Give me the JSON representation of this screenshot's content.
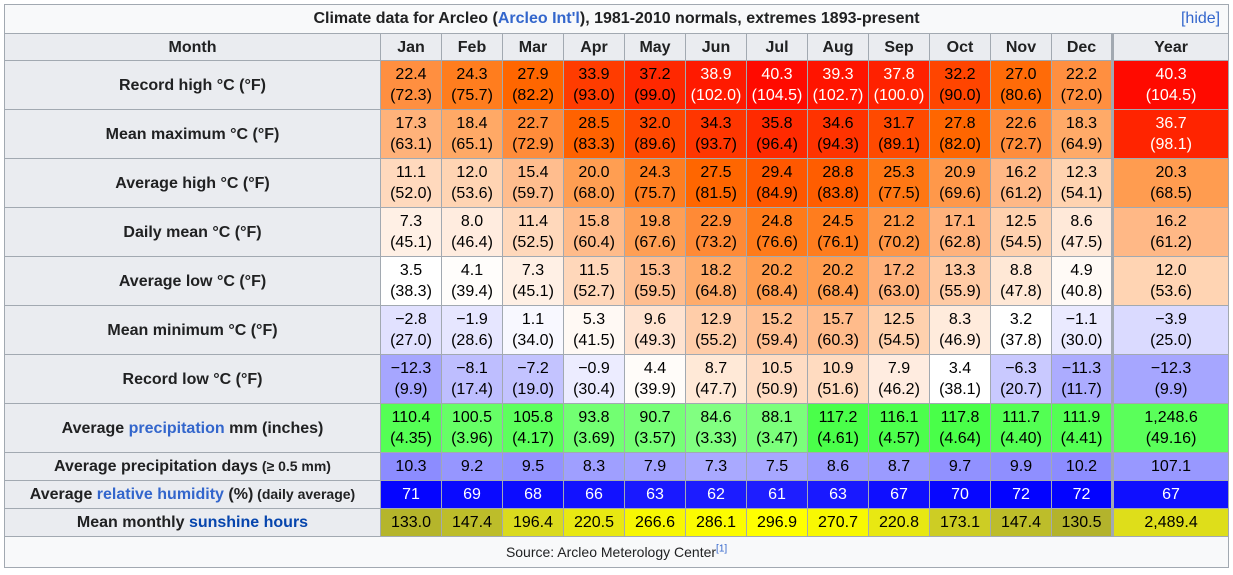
{
  "caption": {
    "prefix": "Climate data for Arcleo (",
    "station_link": "Arcleo Int'l",
    "suffix": "), 1981-2010 normals, extremes 1893-present",
    "hide_label": "[hide]"
  },
  "header": {
    "month_label": "Month",
    "months": [
      "Jan",
      "Feb",
      "Mar",
      "Apr",
      "May",
      "Jun",
      "Jul",
      "Aug",
      "Sep",
      "Oct",
      "Nov",
      "Dec",
      "Year"
    ]
  },
  "rows": [
    {
      "label": "Record high °C (°F)",
      "cells": [
        {
          "v": "22.4",
          "f": "(72.3)",
          "bg": "#ff8f40",
          "fg": "#000000"
        },
        {
          "v": "24.3",
          "f": "(75.7)",
          "bg": "#ff7d1e",
          "fg": "#000000"
        },
        {
          "v": "27.9",
          "f": "(82.2)",
          "bg": "#ff6600",
          "fg": "#000000"
        },
        {
          "v": "33.9",
          "f": "(93.0)",
          "bg": "#ff3c00",
          "fg": "#000000"
        },
        {
          "v": "37.2",
          "f": "(99.0)",
          "bg": "#ff2800",
          "fg": "#000000"
        },
        {
          "v": "38.9",
          "f": "(102.0)",
          "bg": "#ff1a00",
          "fg": "#ffffff"
        },
        {
          "v": "40.3",
          "f": "(104.5)",
          "bg": "#ff0a00",
          "fg": "#ffffff"
        },
        {
          "v": "39.3",
          "f": "(102.7)",
          "bg": "#ff1400",
          "fg": "#ffffff"
        },
        {
          "v": "37.8",
          "f": "(100.0)",
          "bg": "#ff2100",
          "fg": "#ffffff"
        },
        {
          "v": "32.2",
          "f": "(90.0)",
          "bg": "#ff4500",
          "fg": "#000000"
        },
        {
          "v": "27.0",
          "f": "(80.6)",
          "bg": "#ff6b08",
          "fg": "#000000"
        },
        {
          "v": "22.2",
          "f": "(72.0)",
          "bg": "#ff8f40",
          "fg": "#000000"
        },
        {
          "v": "40.3",
          "f": "(104.5)",
          "bg": "#ff0a00",
          "fg": "#ffffff"
        }
      ]
    },
    {
      "label": "Mean maximum °C (°F)",
      "cells": [
        {
          "v": "17.3",
          "f": "(63.1)",
          "bg": "#ffb27a",
          "fg": "#000000"
        },
        {
          "v": "18.4",
          "f": "(65.1)",
          "bg": "#ffa966",
          "fg": "#000000"
        },
        {
          "v": "22.7",
          "f": "(72.9)",
          "bg": "#ff8c3a",
          "fg": "#000000"
        },
        {
          "v": "28.5",
          "f": "(83.3)",
          "bg": "#ff6200",
          "fg": "#000000"
        },
        {
          "v": "32.0",
          "f": "(89.6)",
          "bg": "#ff4800",
          "fg": "#000000"
        },
        {
          "v": "34.3",
          "f": "(93.7)",
          "bg": "#ff3600",
          "fg": "#000000"
        },
        {
          "v": "35.8",
          "f": "(96.4)",
          "bg": "#ff2a00",
          "fg": "#000000"
        },
        {
          "v": "34.6",
          "f": "(94.3)",
          "bg": "#ff3300",
          "fg": "#000000"
        },
        {
          "v": "31.7",
          "f": "(89.1)",
          "bg": "#ff4a00",
          "fg": "#000000"
        },
        {
          "v": "27.8",
          "f": "(82.0)",
          "bg": "#ff6600",
          "fg": "#000000"
        },
        {
          "v": "22.6",
          "f": "(72.7)",
          "bg": "#ff8d3c",
          "fg": "#000000"
        },
        {
          "v": "18.3",
          "f": "(64.9)",
          "bg": "#ffaa68",
          "fg": "#000000"
        },
        {
          "v": "36.7",
          "f": "(98.1)",
          "bg": "#ff2400",
          "fg": "#ffffff"
        }
      ]
    },
    {
      "label": "Average high °C (°F)",
      "cells": [
        {
          "v": "11.1",
          "f": "(52.0)",
          "bg": "#ffd9bd",
          "fg": "#000000"
        },
        {
          "v": "12.0",
          "f": "(53.6)",
          "bg": "#ffd4b3",
          "fg": "#000000"
        },
        {
          "v": "15.4",
          "f": "(59.7)",
          "bg": "#ffbd8e",
          "fg": "#000000"
        },
        {
          "v": "20.0",
          "f": "(68.0)",
          "bg": "#ff9e52",
          "fg": "#000000"
        },
        {
          "v": "24.3",
          "f": "(75.7)",
          "bg": "#ff7e20",
          "fg": "#000000"
        },
        {
          "v": "27.5",
          "f": "(81.5)",
          "bg": "#ff6600",
          "fg": "#000000"
        },
        {
          "v": "29.4",
          "f": "(84.9)",
          "bg": "#ff5800",
          "fg": "#000000"
        },
        {
          "v": "28.8",
          "f": "(83.8)",
          "bg": "#ff5d00",
          "fg": "#000000"
        },
        {
          "v": "25.3",
          "f": "(77.5)",
          "bg": "#ff7714",
          "fg": "#000000"
        },
        {
          "v": "20.9",
          "f": "(69.6)",
          "bg": "#ff984a",
          "fg": "#000000"
        },
        {
          "v": "16.2",
          "f": "(61.2)",
          "bg": "#ffb886",
          "fg": "#000000"
        },
        {
          "v": "12.3",
          "f": "(54.1)",
          "bg": "#ffd3b0",
          "fg": "#000000"
        },
        {
          "v": "20.3",
          "f": "(68.5)",
          "bg": "#ff9c50",
          "fg": "#000000"
        }
      ]
    },
    {
      "label": "Daily mean °C (°F)",
      "cells": [
        {
          "v": "7.3",
          "f": "(45.1)",
          "bg": "#fff0e5",
          "fg": "#000000"
        },
        {
          "v": "8.0",
          "f": "(46.4)",
          "bg": "#ffecdf",
          "fg": "#000000"
        },
        {
          "v": "11.4",
          "f": "(52.5)",
          "bg": "#ffd8bb",
          "fg": "#000000"
        },
        {
          "v": "15.8",
          "f": "(60.4)",
          "bg": "#ffbb8a",
          "fg": "#000000"
        },
        {
          "v": "19.8",
          "f": "(67.6)",
          "bg": "#ff9f55",
          "fg": "#000000"
        },
        {
          "v": "22.9",
          "f": "(73.2)",
          "bg": "#ff8a36",
          "fg": "#000000"
        },
        {
          "v": "24.8",
          "f": "(76.6)",
          "bg": "#ff7b1a",
          "fg": "#000000"
        },
        {
          "v": "24.5",
          "f": "(76.1)",
          "bg": "#ff7d1e",
          "fg": "#000000"
        },
        {
          "v": "21.2",
          "f": "(70.2)",
          "bg": "#ff9646",
          "fg": "#000000"
        },
        {
          "v": "17.1",
          "f": "(62.8)",
          "bg": "#ffb27c",
          "fg": "#000000"
        },
        {
          "v": "12.5",
          "f": "(54.5)",
          "bg": "#ffd1ae",
          "fg": "#000000"
        },
        {
          "v": "8.6",
          "f": "(47.5)",
          "bg": "#ffe9d9",
          "fg": "#000000"
        },
        {
          "v": "16.2",
          "f": "(61.2)",
          "bg": "#ffb886",
          "fg": "#000000"
        }
      ]
    },
    {
      "label": "Average low °C (°F)",
      "cells": [
        {
          "v": "3.5",
          "f": "(38.3)",
          "bg": "#ffffff",
          "fg": "#000000"
        },
        {
          "v": "4.1",
          "f": "(39.4)",
          "bg": "#fffdfb",
          "fg": "#000000"
        },
        {
          "v": "7.3",
          "f": "(45.1)",
          "bg": "#fff0e5",
          "fg": "#000000"
        },
        {
          "v": "11.5",
          "f": "(52.7)",
          "bg": "#ffd7ba",
          "fg": "#000000"
        },
        {
          "v": "15.3",
          "f": "(59.5)",
          "bg": "#ffbe90",
          "fg": "#000000"
        },
        {
          "v": "18.2",
          "f": "(64.8)",
          "bg": "#ffab6a",
          "fg": "#000000"
        },
        {
          "v": "20.2",
          "f": "(68.4)",
          "bg": "#ff9d50",
          "fg": "#000000"
        },
        {
          "v": "20.2",
          "f": "(68.4)",
          "bg": "#ff9d50",
          "fg": "#000000"
        },
        {
          "v": "17.2",
          "f": "(63.0)",
          "bg": "#ffb17b",
          "fg": "#000000"
        },
        {
          "v": "13.3",
          "f": "(55.9)",
          "bg": "#ffcba5",
          "fg": "#000000"
        },
        {
          "v": "8.8",
          "f": "(47.8)",
          "bg": "#ffe8d6",
          "fg": "#000000"
        },
        {
          "v": "4.9",
          "f": "(40.8)",
          "bg": "#fffaf6",
          "fg": "#000000"
        },
        {
          "v": "12.0",
          "f": "(53.6)",
          "bg": "#ffd4b3",
          "fg": "#000000"
        }
      ]
    },
    {
      "label": "Mean minimum °C (°F)",
      "cells": [
        {
          "v": "−2.8",
          "f": "(27.0)",
          "bg": "#e1e1ff",
          "fg": "#000000"
        },
        {
          "v": "−1.9",
          "f": "(28.6)",
          "bg": "#e6e6ff",
          "fg": "#000000"
        },
        {
          "v": "1.1",
          "f": "(34.0)",
          "bg": "#f8f8ff",
          "fg": "#000000"
        },
        {
          "v": "5.3",
          "f": "(41.5)",
          "bg": "#fff9f4",
          "fg": "#000000"
        },
        {
          "v": "9.6",
          "f": "(49.3)",
          "bg": "#ffe3d0",
          "fg": "#000000"
        },
        {
          "v": "12.9",
          "f": "(55.2)",
          "bg": "#ffcda9",
          "fg": "#000000"
        },
        {
          "v": "15.2",
          "f": "(59.4)",
          "bg": "#ffbf92",
          "fg": "#000000"
        },
        {
          "v": "15.7",
          "f": "(60.3)",
          "bg": "#ffbb8b",
          "fg": "#000000"
        },
        {
          "v": "12.5",
          "f": "(54.5)",
          "bg": "#ffd1ae",
          "fg": "#000000"
        },
        {
          "v": "8.3",
          "f": "(46.9)",
          "bg": "#ffebdc",
          "fg": "#000000"
        },
        {
          "v": "3.2",
          "f": "(37.8)",
          "bg": "#ffffff",
          "fg": "#000000"
        },
        {
          "v": "−1.1",
          "f": "(30.0)",
          "bg": "#eaeaff",
          "fg": "#000000"
        },
        {
          "v": "−3.9",
          "f": "(25.0)",
          "bg": "#dadaff",
          "fg": "#000000"
        }
      ]
    },
    {
      "label": "Record low °C (°F)",
      "cells": [
        {
          "v": "−12.3",
          "f": "(9.9)",
          "bg": "#a6a6ff",
          "fg": "#000000"
        },
        {
          "v": "−8.1",
          "f": "(17.4)",
          "bg": "#bebeff",
          "fg": "#000000"
        },
        {
          "v": "−7.2",
          "f": "(19.0)",
          "bg": "#c3c3ff",
          "fg": "#000000"
        },
        {
          "v": "−0.9",
          "f": "(30.4)",
          "bg": "#ececff",
          "fg": "#000000"
        },
        {
          "v": "4.4",
          "f": "(39.9)",
          "bg": "#fffcf9",
          "fg": "#000000"
        },
        {
          "v": "8.7",
          "f": "(47.7)",
          "bg": "#ffe9d7",
          "fg": "#000000"
        },
        {
          "v": "10.5",
          "f": "(50.9)",
          "bg": "#ffdcc3",
          "fg": "#000000"
        },
        {
          "v": "10.9",
          "f": "(51.6)",
          "bg": "#ffdbc0",
          "fg": "#000000"
        },
        {
          "v": "7.9",
          "f": "(46.2)",
          "bg": "#ffece0",
          "fg": "#000000"
        },
        {
          "v": "3.4",
          "f": "(38.1)",
          "bg": "#ffffff",
          "fg": "#000000"
        },
        {
          "v": "−6.3",
          "f": "(20.7)",
          "bg": "#c9c9ff",
          "fg": "#000000"
        },
        {
          "v": "−11.3",
          "f": "(11.7)",
          "bg": "#acacff",
          "fg": "#000000"
        },
        {
          "v": "−12.3",
          "f": "(9.9)",
          "bg": "#a6a6ff",
          "fg": "#000000"
        }
      ]
    },
    {
      "label_parts": [
        "Average ",
        "precipitation",
        " mm (inches)"
      ],
      "cells": [
        {
          "v": "110.4",
          "f": "(4.35)",
          "bg": "#55ff55",
          "fg": "#000000"
        },
        {
          "v": "100.5",
          "f": "(3.96)",
          "bg": "#66ff66",
          "fg": "#000000"
        },
        {
          "v": "105.8",
          "f": "(4.17)",
          "bg": "#5dff5d",
          "fg": "#000000"
        },
        {
          "v": "93.8",
          "f": "(3.69)",
          "bg": "#72ff72",
          "fg": "#000000"
        },
        {
          "v": "90.7",
          "f": "(3.57)",
          "bg": "#77ff77",
          "fg": "#000000"
        },
        {
          "v": "84.6",
          "f": "(3.33)",
          "bg": "#81ff81",
          "fg": "#000000"
        },
        {
          "v": "88.1",
          "f": "(3.47)",
          "bg": "#7bff7b",
          "fg": "#000000"
        },
        {
          "v": "117.2",
          "f": "(4.61)",
          "bg": "#4aff4a",
          "fg": "#000000"
        },
        {
          "v": "116.1",
          "f": "(4.57)",
          "bg": "#4cff4c",
          "fg": "#000000"
        },
        {
          "v": "117.8",
          "f": "(4.64)",
          "bg": "#49ff49",
          "fg": "#000000"
        },
        {
          "v": "111.7",
          "f": "(4.40)",
          "bg": "#53ff53",
          "fg": "#000000"
        },
        {
          "v": "111.9",
          "f": "(4.41)",
          "bg": "#53ff53",
          "fg": "#000000"
        },
        {
          "v": "1,248.6",
          "f": "(49.16)",
          "bg": "#5aff5a",
          "fg": "#000000"
        }
      ]
    }
  ],
  "single_rows": [
    {
      "label": "Average precipitation days",
      "label_small": " (≥ 0.5 mm)",
      "cells": [
        {
          "v": "10.3",
          "bg": "#8c8cff",
          "fg": "#000000"
        },
        {
          "v": "9.2",
          "bg": "#9696ff",
          "fg": "#000000"
        },
        {
          "v": "9.5",
          "bg": "#9393ff",
          "fg": "#000000"
        },
        {
          "v": "8.3",
          "bg": "#9f9fff",
          "fg": "#000000"
        },
        {
          "v": "7.9",
          "bg": "#a3a3ff",
          "fg": "#000000"
        },
        {
          "v": "7.3",
          "bg": "#a9a9ff",
          "fg": "#000000"
        },
        {
          "v": "7.5",
          "bg": "#a7a7ff",
          "fg": "#000000"
        },
        {
          "v": "8.6",
          "bg": "#9c9cff",
          "fg": "#000000"
        },
        {
          "v": "8.7",
          "bg": "#9b9bff",
          "fg": "#000000"
        },
        {
          "v": "9.7",
          "bg": "#9191ff",
          "fg": "#000000"
        },
        {
          "v": "9.9",
          "bg": "#8f8fff",
          "fg": "#000000"
        },
        {
          "v": "10.2",
          "bg": "#8c8cff",
          "fg": "#000000"
        },
        {
          "v": "107.1",
          "bg": "#9898ff",
          "fg": "#000000"
        }
      ]
    },
    {
      "label_parts": [
        "Average ",
        "relative humidity",
        " (%)"
      ],
      "label_small": " (daily average)",
      "cells": [
        {
          "v": "71",
          "bg": "#0505ff",
          "fg": "#ffffff"
        },
        {
          "v": "69",
          "bg": "#0a0aff",
          "fg": "#ffffff"
        },
        {
          "v": "68",
          "bg": "#0c0cff",
          "fg": "#ffffff"
        },
        {
          "v": "66",
          "bg": "#1212ff",
          "fg": "#ffffff"
        },
        {
          "v": "63",
          "bg": "#1919ff",
          "fg": "#ffffff"
        },
        {
          "v": "62",
          "bg": "#1c1cff",
          "fg": "#ffffff"
        },
        {
          "v": "61",
          "bg": "#1e1eff",
          "fg": "#ffffff"
        },
        {
          "v": "63",
          "bg": "#1919ff",
          "fg": "#ffffff"
        },
        {
          "v": "67",
          "bg": "#0f0fff",
          "fg": "#ffffff"
        },
        {
          "v": "70",
          "bg": "#0707ff",
          "fg": "#ffffff"
        },
        {
          "v": "72",
          "bg": "#0303ff",
          "fg": "#ffffff"
        },
        {
          "v": "72",
          "bg": "#0303ff",
          "fg": "#ffffff"
        },
        {
          "v": "67",
          "bg": "#0f0fff",
          "fg": "#ffffff"
        }
      ]
    },
    {
      "label_parts": [
        "Mean monthly ",
        "sunshine hours",
        ""
      ],
      "cells": [
        {
          "v": "133.0",
          "bg": "#b5b52b",
          "fg": "#000000"
        },
        {
          "v": "147.4",
          "bg": "#bdbd2a",
          "fg": "#000000"
        },
        {
          "v": "196.4",
          "bg": "#dada1e",
          "fg": "#000000"
        },
        {
          "v": "220.5",
          "bg": "#e8e812",
          "fg": "#000000"
        },
        {
          "v": "266.6",
          "bg": "#f7f703",
          "fg": "#000000"
        },
        {
          "v": "286.1",
          "bg": "#fcfc00",
          "fg": "#000000"
        },
        {
          "v": "296.9",
          "bg": "#ffff00",
          "fg": "#000000"
        },
        {
          "v": "270.7",
          "bg": "#f8f802",
          "fg": "#000000"
        },
        {
          "v": "220.8",
          "bg": "#e8e812",
          "fg": "#000000"
        },
        {
          "v": "173.1",
          "bg": "#cdcd24",
          "fg": "#000000"
        },
        {
          "v": "147.4",
          "bg": "#bdbd2a",
          "fg": "#000000"
        },
        {
          "v": "130.5",
          "bg": "#b3b32c",
          "fg": "#000000"
        },
        {
          "v": "2,489.4",
          "bg": "#dede1a",
          "fg": "#000000"
        }
      ]
    }
  ],
  "source": {
    "text": "Source: Arcleo Meterology Center",
    "ref": "[1]"
  }
}
